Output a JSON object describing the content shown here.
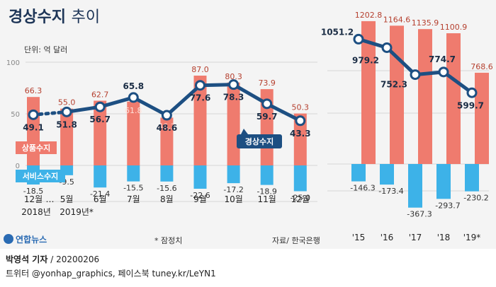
{
  "title": "경상수지",
  "title_suffix": "추이",
  "unit_label": "단위: 억 달러",
  "legend": {
    "goods": "상품수지",
    "service": "서비스수지",
    "current": "경상수지"
  },
  "notes": {
    "provisional": "* 잠정치",
    "source": "자료/ 한국은행",
    "logo": "연합뉴스"
  },
  "footer": {
    "reporter": "박영석 기자",
    "date": "20200206",
    "sns": "트위터 @yonhap_graphics, 페이스북 tuney.kr/LeYN1"
  },
  "colors": {
    "goods": "#ef7b6e",
    "service": "#3db2e8",
    "current": "#1d4f82",
    "title": "#1d3557",
    "grid": "#d6d6d6"
  },
  "chart_data": [
    {
      "type": "bar",
      "name": "monthly",
      "categories": [
        "12월",
        "5월",
        "6월",
        "7월",
        "8월",
        "9월",
        "10월",
        "11월",
        "12월"
      ],
      "category_year_labels": [
        "2018년",
        "2019년*",
        "",
        "",
        "",
        "",
        "",
        "",
        ""
      ],
      "gap_label": "…",
      "yticks": [
        100,
        50,
        0
      ],
      "ylim": [
        -35,
        100
      ],
      "series": [
        {
          "name": "상품수지",
          "values": [
            66.3,
            55.0,
            62.7,
            61.8,
            46.3,
            87.0,
            80.3,
            73.9,
            50.3
          ]
        },
        {
          "name": "서비스수지",
          "values": [
            -18.5,
            -9.5,
            -21.4,
            -15.5,
            -15.6,
            -22.6,
            -17.2,
            -18.9,
            -25.0
          ]
        },
        {
          "name": "경상수지",
          "type": "line",
          "values": [
            49.1,
            51.8,
            56.7,
            65.8,
            48.6,
            77.6,
            78.3,
            59.7,
            43.3
          ]
        }
      ]
    },
    {
      "type": "bar",
      "name": "annual",
      "categories": [
        "'15",
        "'16",
        "'17",
        "'18",
        "'19*"
      ],
      "ylim": [
        -420,
        1250
      ],
      "series": [
        {
          "name": "상품수지",
          "values": [
            1202.8,
            1164.6,
            1135.9,
            1100.9,
            768.6
          ]
        },
        {
          "name": "서비스수지",
          "values": [
            -146.3,
            -173.4,
            -367.3,
            -293.7,
            -230.2
          ]
        },
        {
          "name": "경상수지",
          "type": "line",
          "values": [
            1051.2,
            979.2,
            752.3,
            774.7,
            599.7
          ]
        }
      ]
    }
  ]
}
